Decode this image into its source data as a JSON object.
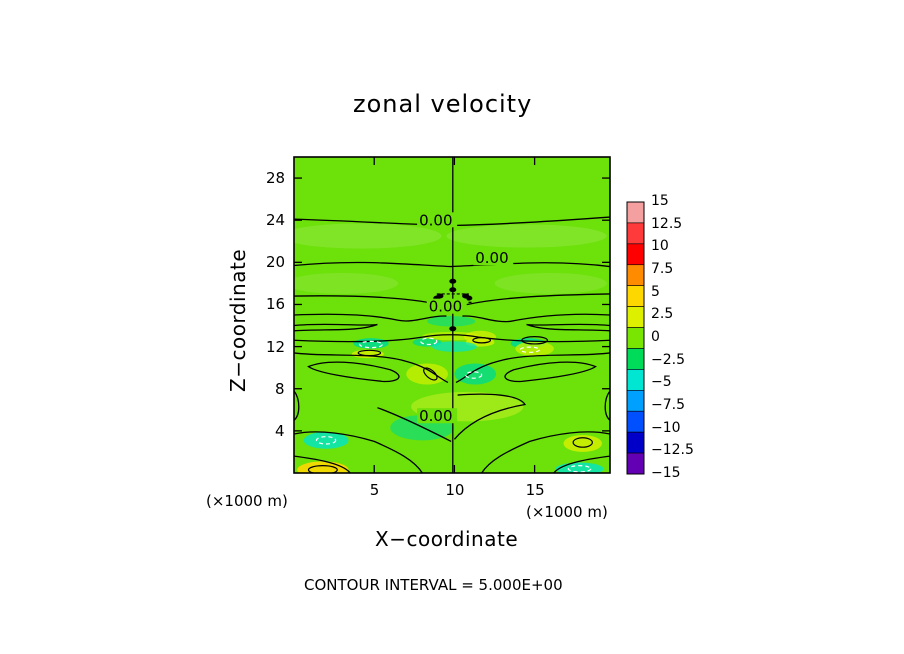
{
  "chart_data": {
    "type": "heatmap",
    "title": "zonal velocity",
    "xlabel": "X−coordinate",
    "ylabel": "Z−coordinate",
    "x_unit_left": "(×1000 m)",
    "x_unit_right": "(×1000 m)",
    "xlim": [
      0,
      19.7
    ],
    "ylim": [
      0,
      30
    ],
    "xticks": [
      5,
      10,
      15
    ],
    "xtick_labels": [
      "5",
      "10",
      "15"
    ],
    "yticks": [
      4,
      8,
      12,
      16,
      20,
      24,
      28
    ],
    "ytick_labels": [
      "4",
      "8",
      "12",
      "16",
      "20",
      "24",
      "28"
    ],
    "contour_labels": [
      {
        "text": "0.00",
        "x": 7.8,
        "z": 23.8
      },
      {
        "text": "0.00",
        "x": 11.3,
        "z": 20.2
      },
      {
        "text": "0.00",
        "x": 8.4,
        "z": 15.6
      },
      {
        "text": "0.00",
        "x": 7.8,
        "z": 5.2
      }
    ],
    "colorbar": {
      "levels": [
        15,
        12.5,
        10,
        7.5,
        5,
        2.5,
        0,
        -2.5,
        -5,
        -7.5,
        -10,
        -12.5,
        -15
      ],
      "labels": [
        "15",
        "12.5",
        "10",
        "7.5",
        "5",
        "2.5",
        "0",
        "−2.5",
        "−5",
        "−7.5",
        "−10",
        "−12.5",
        "−15"
      ],
      "colors": [
        "#f4a0a0",
        "#ff3a3a",
        "#ff0000",
        "#ff8c00",
        "#ffd700",
        "#dcf000",
        "#78e600",
        "#00dc5a",
        "#00e6d2",
        "#00a0ff",
        "#0050ff",
        "#0000c8",
        "#6400b4"
      ]
    },
    "grid": false,
    "value_range": [
      -7,
      6
    ],
    "background_value": 0.8
  },
  "contour_interval_text": "CONTOUR INTERVAL = 5.000E+00"
}
